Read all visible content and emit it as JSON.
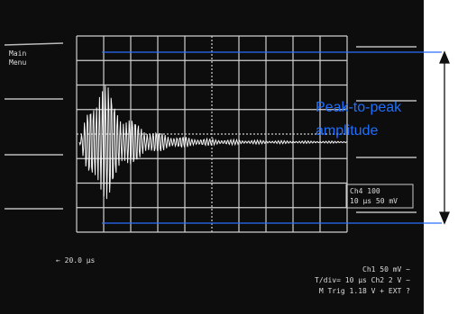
{
  "annotation": {
    "lines": [
      "Peak-to-peak",
      "amplitude"
    ]
  },
  "screen": {
    "menu": [
      "Main",
      "Menu"
    ],
    "offset": "← 20.0 μs",
    "box": [
      "Ch4  100",
      "10 μs  50 mV"
    ],
    "status": [
      "Ch1  50 mV  ~",
      "T/div= 10 μs  Ch2  2 V  ~",
      "M Trig  1.18 V  +  EXT  ?"
    ]
  }
}
